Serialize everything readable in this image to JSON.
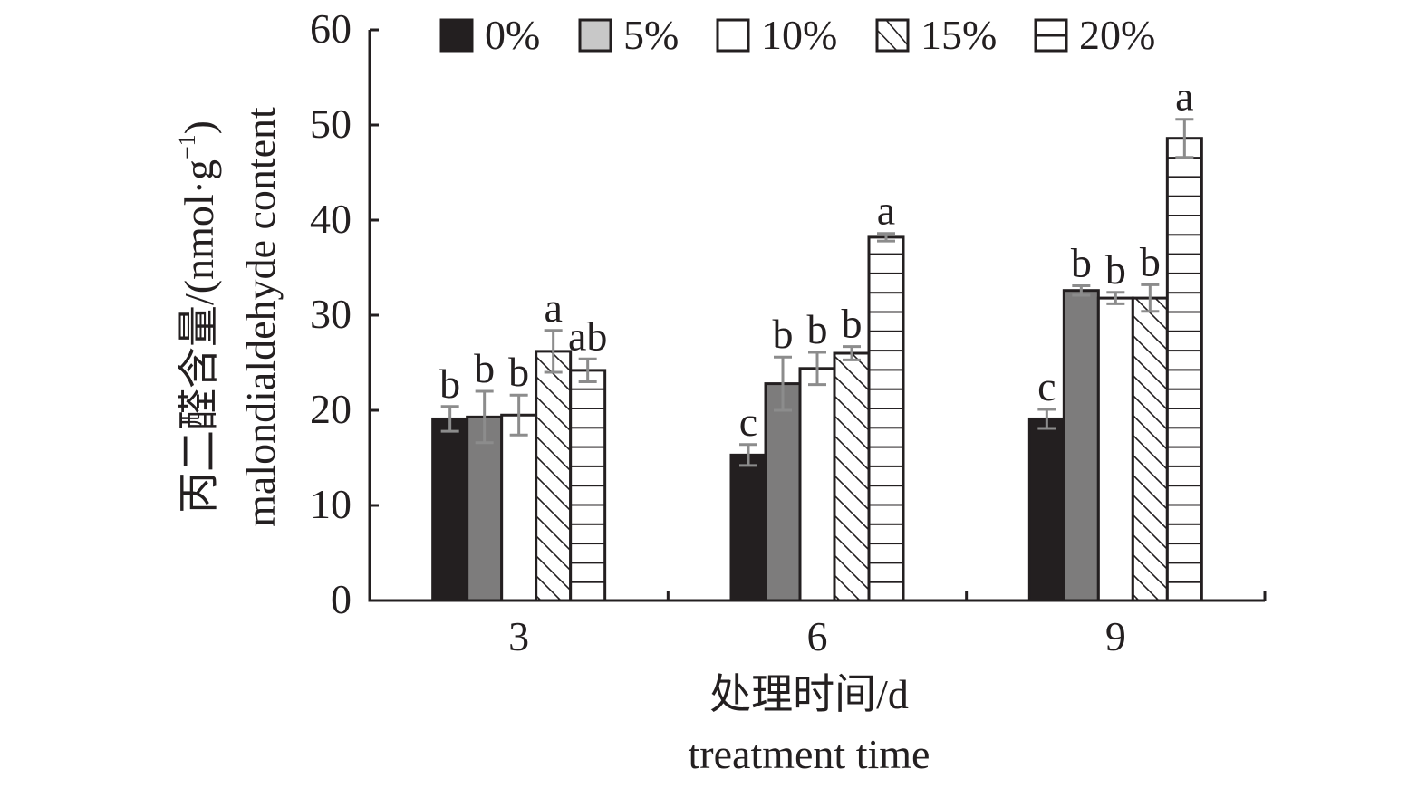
{
  "chart_data": {
    "type": "bar",
    "title": "",
    "xlabel_cn": "处理时间/d",
    "xlabel_en": "treatment time",
    "ylabel_cn": "丙二醛含量/(nmol·g",
    "ylabel_sup": "−1",
    "ylabel_close": ")",
    "ylabel_en": "malondialdehyde content",
    "ylim": [
      0,
      60
    ],
    "yticks": [
      0,
      10,
      20,
      30,
      40,
      50,
      60
    ],
    "categories": [
      "3",
      "6",
      "9"
    ],
    "legend_position": "top",
    "grid": false,
    "series": [
      {
        "name": "0%",
        "pattern": "solid-black",
        "color": "#231f20",
        "values": [
          19.1,
          15.3,
          19.1
        ],
        "errors": [
          1.3,
          1.1,
          1.0
        ],
        "letters": [
          "b",
          "c",
          "c"
        ]
      },
      {
        "name": "5%",
        "pattern": "solid-gray",
        "color": "#7d7c7c",
        "legend_color": "#c8c8c8",
        "values": [
          19.3,
          22.8,
          32.6
        ],
        "errors": [
          2.7,
          2.8,
          0.5
        ],
        "letters": [
          "b",
          "b",
          "b"
        ]
      },
      {
        "name": "10%",
        "pattern": "white",
        "color": "#ffffff",
        "values": [
          19.5,
          24.4,
          31.8
        ],
        "errors": [
          2.1,
          1.7,
          0.6
        ],
        "letters": [
          "b",
          "b",
          "b"
        ]
      },
      {
        "name": "15%",
        "pattern": "diagonal-hatch",
        "color": "#ffffff",
        "values": [
          26.2,
          26.0,
          31.8
        ],
        "errors": [
          2.2,
          0.7,
          1.4
        ],
        "letters": [
          "a",
          "b",
          "b"
        ]
      },
      {
        "name": "20%",
        "pattern": "horizontal-hatch",
        "color": "#ffffff",
        "values": [
          24.2,
          38.2,
          48.6
        ],
        "errors": [
          1.2,
          0.4,
          2.0
        ],
        "letters": [
          "ab",
          "a",
          "a"
        ]
      }
    ],
    "error_bar_color": "#8c8c8c"
  }
}
